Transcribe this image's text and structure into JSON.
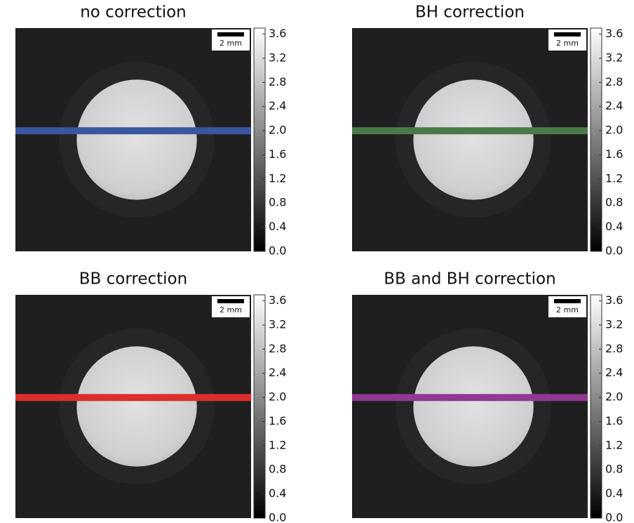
{
  "chart_data": [
    {
      "type": "image",
      "title": "no correction",
      "scale_bar": "2 mm",
      "line_color": "#3a56a0",
      "ylim": [
        0,
        3.7
      ],
      "yticks": [
        {
          "value": 0,
          "label": "0.0"
        },
        0.4,
        0.8,
        1.2,
        1.6,
        {
          "value": 2,
          "label": "2.0"
        },
        2.4,
        2.8,
        3.2,
        3.6
      ]
    },
    {
      "type": "image",
      "title": "BH correction",
      "scale_bar": "2 mm",
      "line_color": "#4a7a4a",
      "ylim": [
        0,
        3.7
      ],
      "yticks": [
        {
          "value": 0,
          "label": "0.0"
        },
        0.4,
        0.8,
        1.2,
        1.6,
        {
          "value": 2,
          "label": "2.0"
        },
        2.4,
        2.8,
        3.2,
        3.6
      ]
    },
    {
      "type": "image",
      "title": "BB correction",
      "scale_bar": "2 mm",
      "line_color": "#dc2e2e",
      "ylim": [
        0,
        3.7
      ],
      "yticks": [
        {
          "value": 0,
          "label": "0.0"
        },
        0.4,
        0.8,
        1.2,
        1.6,
        {
          "value": 2,
          "label": "2.0"
        },
        2.4,
        2.8,
        3.2,
        3.6
      ]
    },
    {
      "type": "image",
      "title": "BB and BH correction",
      "scale_bar": "2 mm",
      "line_color": "#8e3a90",
      "ylim": [
        0,
        3.7
      ],
      "yticks": [
        {
          "value": 0,
          "label": "0.0"
        },
        0.4,
        0.8,
        1.2,
        1.6,
        {
          "value": 2,
          "label": "2.0"
        },
        2.4,
        2.8,
        3.2,
        3.6
      ]
    }
  ]
}
